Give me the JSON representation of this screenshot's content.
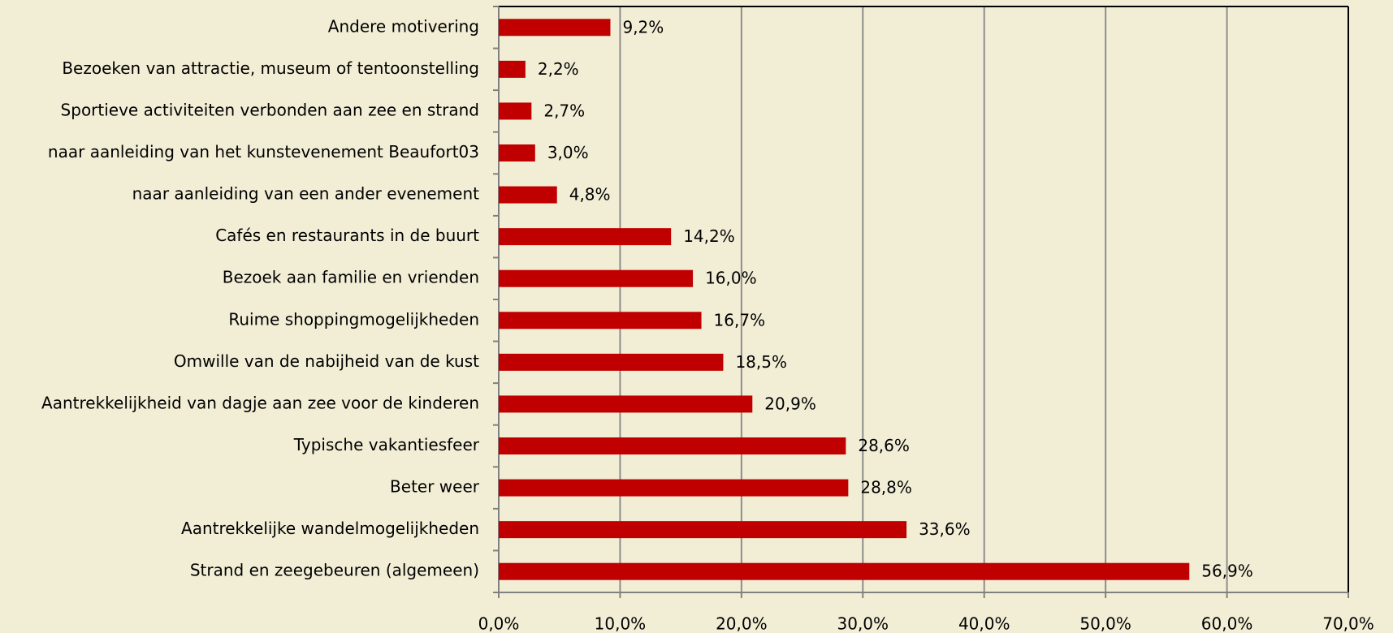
{
  "chart_data": {
    "type": "hbar",
    "categories": [
      "Andere motivering",
      "Bezoeken van attractie, museum of tentoonstelling",
      "Sportieve activiteiten verbonden aan zee en strand",
      "naar aanleiding van het kunstevenement Beaufort03",
      "naar aanleiding van een ander evenement",
      "Cafés en restaurants in de buurt",
      "Bezoek aan familie en vrienden",
      "Ruime shoppingmogelijkheden",
      "Omwille van de nabijheid van de kust",
      "Aantrekkelijkheid van dagje aan zee voor de kinderen",
      "Typische vakantiesfeer",
      "Beter weer",
      "Aantrekkelijke wandelmogelijkheden",
      "Strand en zeegebeuren (algemeen)"
    ],
    "values": [
      9.2,
      2.2,
      2.7,
      3.0,
      4.8,
      14.2,
      16.0,
      16.7,
      18.5,
      20.9,
      28.6,
      28.8,
      33.6,
      56.9
    ],
    "value_labels": [
      "9,2%",
      "2,2%",
      "2,7%",
      "3,0%",
      "4,8%",
      "14,2%",
      "16,0%",
      "16,7%",
      "18,5%",
      "20,9%",
      "28,6%",
      "28,8%",
      "33,6%",
      "56,9%"
    ],
    "color": "#c00000",
    "xlim": [
      0,
      70
    ],
    "xticks": [
      {
        "value": 0,
        "label": "0,0%"
      },
      {
        "value": 10,
        "label": "10,0%"
      },
      {
        "value": 20,
        "label": "20,0%"
      },
      {
        "value": 30,
        "label": "30,0%"
      },
      {
        "value": 40,
        "label": "40,0%"
      },
      {
        "value": 50,
        "label": "50,0%"
      },
      {
        "value": 60,
        "label": "60,0%"
      },
      {
        "value": 70,
        "label": "70,0%"
      }
    ],
    "grid": true
  }
}
